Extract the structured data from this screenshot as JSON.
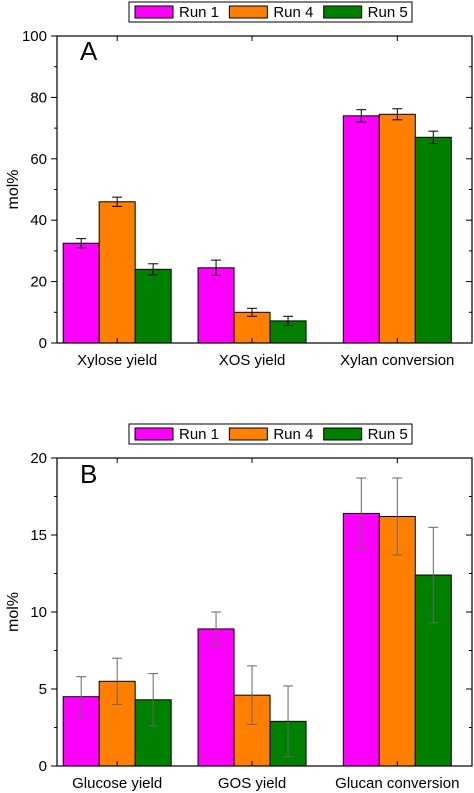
{
  "chart_data": [
    {
      "type": "bar",
      "panel_label": "A",
      "ylabel": "mol%",
      "ylim": [
        0,
        100
      ],
      "yticks": [
        0,
        20,
        40,
        60,
        80,
        100
      ],
      "categories": [
        "Xylose yield",
        "XOS yield",
        "Xylan conversion"
      ],
      "legend_position": "top",
      "series": [
        {
          "name": "Run 1",
          "color": "#ff00ff",
          "values": [
            32.5,
            24.5,
            74
          ],
          "errors": [
            1.5,
            2.5,
            2
          ]
        },
        {
          "name": "Run 4",
          "color": "#ff8000",
          "values": [
            46,
            10,
            74.5
          ],
          "errors": [
            1.5,
            1.3,
            1.8
          ]
        },
        {
          "name": "Run 5",
          "color": "#008000",
          "values": [
            24,
            7.2,
            67
          ],
          "errors": [
            1.8,
            1.5,
            2
          ]
        }
      ]
    },
    {
      "type": "bar",
      "panel_label": "B",
      "ylabel": "mol%",
      "ylim": [
        0,
        20
      ],
      "yticks": [
        0,
        5,
        10,
        15,
        20
      ],
      "categories": [
        "Glucose yield",
        "GOS yield",
        "Glucan conversion"
      ],
      "legend_position": "top",
      "series": [
        {
          "name": "Run 1",
          "color": "#ff00ff",
          "values": [
            4.5,
            8.9,
            16.4
          ],
          "errors": [
            1.3,
            1.1,
            2.3
          ]
        },
        {
          "name": "Run 4",
          "color": "#ff8000",
          "values": [
            5.5,
            4.6,
            16.2
          ],
          "errors": [
            1.5,
            1.9,
            2.5
          ]
        },
        {
          "name": "Run 5",
          "color": "#008000",
          "values": [
            4.3,
            2.9,
            12.4
          ],
          "errors": [
            1.7,
            2.3,
            3.1
          ]
        }
      ]
    }
  ]
}
